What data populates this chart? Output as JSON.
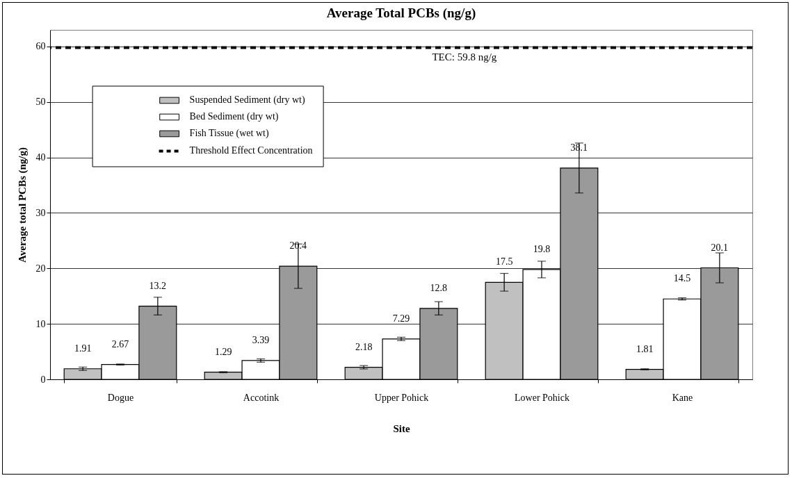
{
  "chart_data": {
    "type": "bar",
    "title": "Average Total PCBs (ng/g)",
    "xlabel": "Site",
    "ylabel": "Average total PCBs (ng/g)",
    "categories": [
      "Dogue",
      "Accotink",
      "Upper Pohick",
      "Lower Pohick",
      "Kane"
    ],
    "series": [
      {
        "name": "Suspended Sediment (dry wt)",
        "color": "#c0c0c0",
        "values": [
          1.91,
          1.29,
          2.18,
          17.5,
          1.81
        ],
        "errors": [
          0.3,
          0.1,
          0.3,
          1.6,
          0.1
        ]
      },
      {
        "name": "Bed Sediment (dry wt)",
        "color": "#ffffff",
        "values": [
          2.67,
          3.39,
          7.29,
          19.8,
          14.5
        ],
        "errors": [
          0.1,
          0.3,
          0.3,
          1.5,
          0.2
        ]
      },
      {
        "name": "Fish Tissue (wet wt)",
        "color": "#9a9a9a",
        "values": [
          13.2,
          20.4,
          12.8,
          38.1,
          20.1
        ],
        "errors": [
          1.6,
          4,
          1.2,
          4.5,
          2.7
        ]
      }
    ],
    "ylim": [
      0,
      63
    ],
    "yticks": [
      0,
      10,
      20,
      30,
      40,
      50,
      60
    ],
    "grid": "y",
    "data_labels": true,
    "legend": "top left",
    "ref_lines": [
      {
        "axis": "y",
        "value": 59.8,
        "label": "Threshold Effect Concentration",
        "color": "#000000",
        "line_style": "dashed"
      }
    ],
    "annotations": [
      {
        "text": "TEC: 59.8 ng/g",
        "y": 59.8
      }
    ]
  }
}
